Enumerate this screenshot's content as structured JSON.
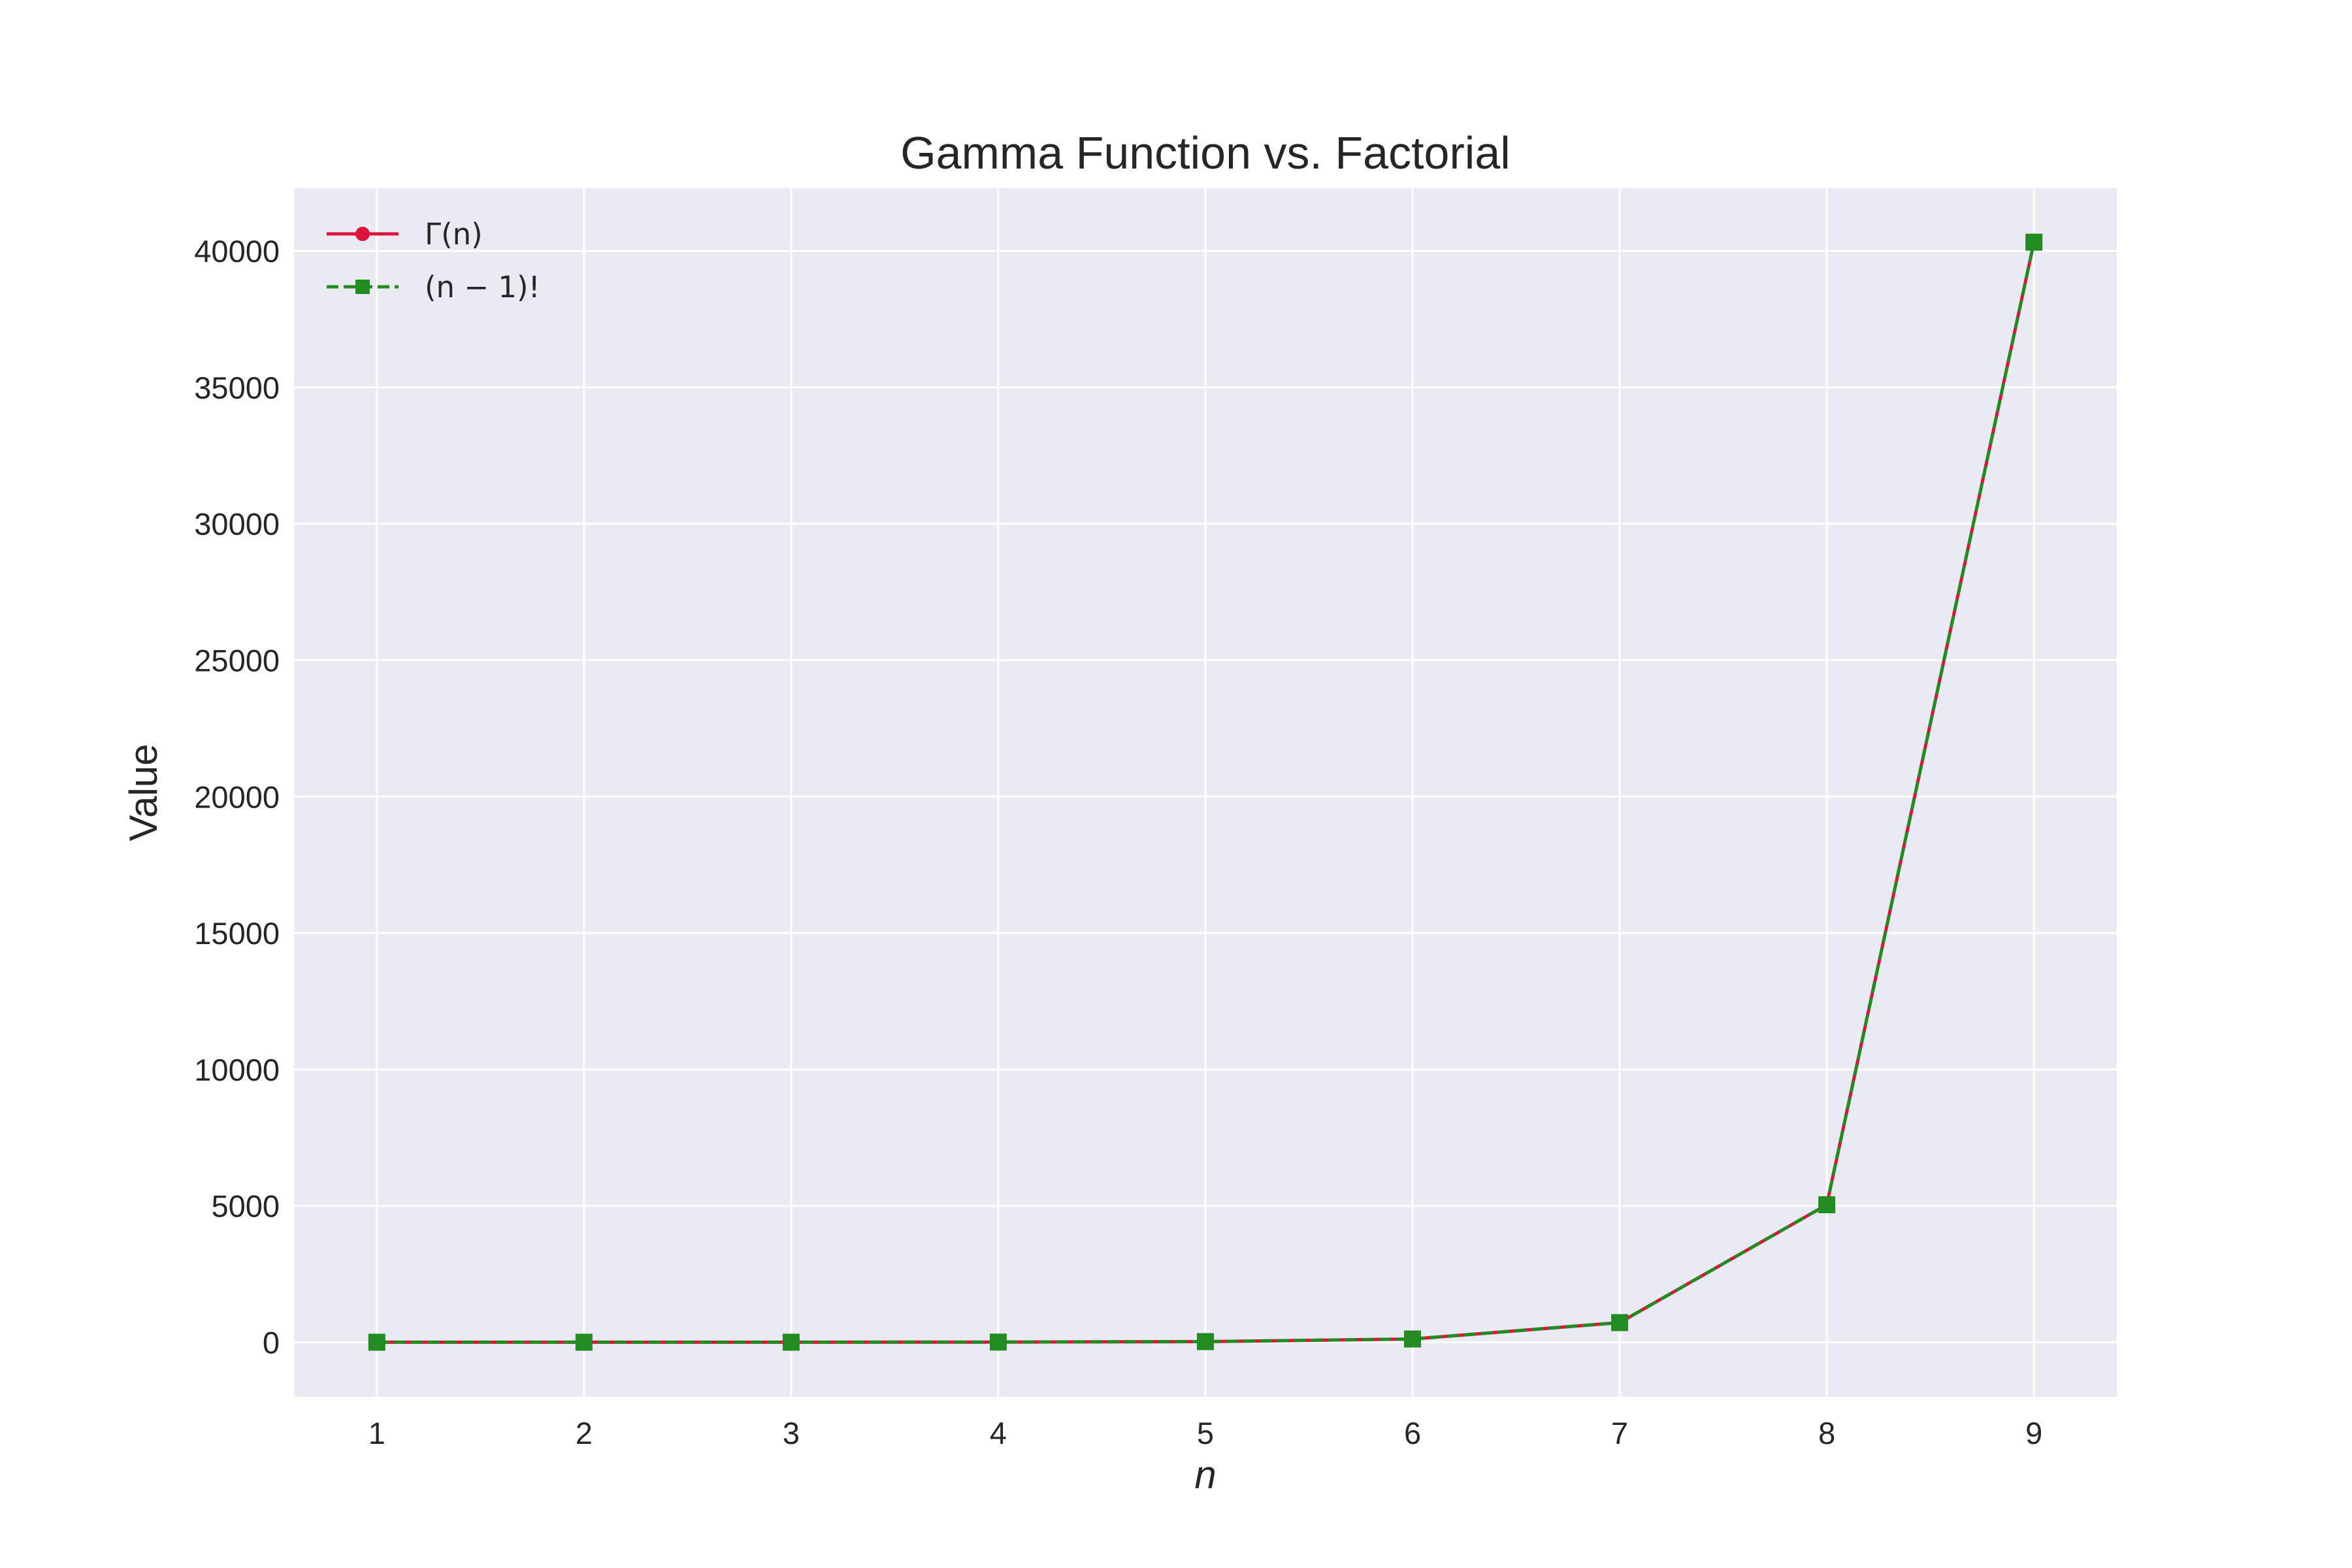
{
  "chart_data": {
    "type": "line",
    "title": "Gamma Function vs. Factorial",
    "xlabel": "n",
    "ylabel": "Value",
    "x": [
      1,
      2,
      3,
      4,
      5,
      6,
      7,
      8,
      9
    ],
    "xlim": [
      0.6,
      9.4
    ],
    "ylim": [
      -2000,
      42300
    ],
    "xticks": [
      "1",
      "2",
      "3",
      "4",
      "5",
      "6",
      "7",
      "8",
      "9"
    ],
    "yticks": [
      "0",
      "5000",
      "10000",
      "15000",
      "20000",
      "25000",
      "30000",
      "35000",
      "40000"
    ],
    "grid": true,
    "legend_position": "top-left",
    "series": [
      {
        "name": "Γ(n)",
        "values": [
          1,
          1,
          2,
          6,
          24,
          120,
          720,
          5040,
          40320
        ],
        "color": "#dc143c",
        "linestyle": "solid",
        "marker": "circle"
      },
      {
        "name": "(n − 1)!",
        "values": [
          1,
          1,
          2,
          6,
          24,
          120,
          720,
          5040,
          40320
        ],
        "color": "#228b22",
        "linestyle": "dashed",
        "marker": "square"
      }
    ],
    "colors": {
      "background": "#eaeaf2",
      "grid": "#ffffff",
      "text": "#262626"
    }
  }
}
